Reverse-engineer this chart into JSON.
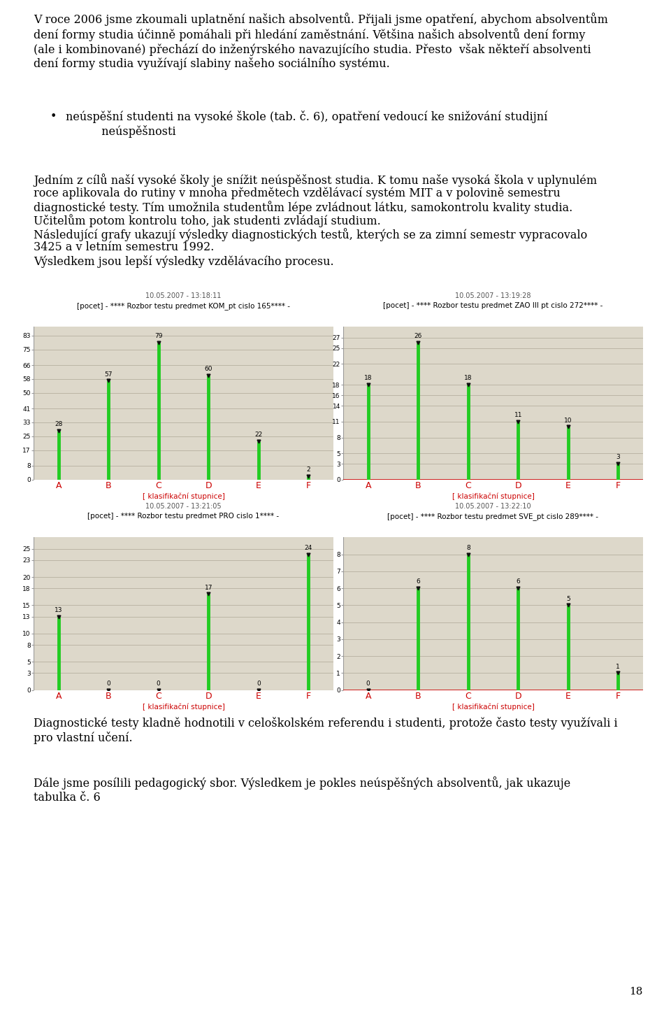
{
  "page_bg": "#ffffff",
  "text_color": "#000000",
  "charts": [
    {
      "timestamp": "10.05.2007 - 13:18:11",
      "title": "[pocet] - **** Rozbor testu predmet KOM_pt cislo 165**** -",
      "categories": [
        "A",
        "B",
        "C",
        "D",
        "E",
        "F"
      ],
      "values": [
        28,
        57,
        79,
        60,
        22,
        2
      ],
      "yticks": [
        0,
        8,
        17,
        25,
        33,
        41,
        50,
        58,
        66,
        75,
        83
      ],
      "ymax": 88,
      "has_red_baseline": false,
      "xlabel": "[ klasifikační stupnice]"
    },
    {
      "timestamp": "10.05.2007 - 13:19:28",
      "title": "[pocet] - **** Rozbor testu predmet ZAO III pt cislo 272**** -",
      "categories": [
        "A",
        "B",
        "C",
        "D",
        "E",
        "F"
      ],
      "values": [
        18,
        26,
        18,
        11,
        10,
        3
      ],
      "yticks": [
        0,
        3,
        5,
        8,
        11,
        14,
        16,
        18,
        22,
        25,
        27
      ],
      "ymax": 29,
      "has_red_baseline": true,
      "xlabel": "[ klasifikační stupnice]"
    },
    {
      "timestamp": "10.05.2007 - 13:21:05",
      "title": "[pocet] - **** Rozbor testu predmet PRO cislo 1**** -",
      "categories": [
        "A",
        "B",
        "C",
        "D",
        "E",
        "F"
      ],
      "values": [
        13,
        0,
        0,
        17,
        0,
        24
      ],
      "yticks": [
        0,
        3,
        5,
        8,
        10,
        13,
        15,
        18,
        20,
        23,
        25
      ],
      "ymax": 27,
      "has_red_baseline": false,
      "xlabel": "[ klasifikační stupnice]"
    },
    {
      "timestamp": "10.05.2007 - 13:22:10",
      "title": "[pocet] - **** Rozbor testu predmet SVE_pt cislo 289**** -",
      "categories": [
        "A",
        "B",
        "C",
        "D",
        "E",
        "F"
      ],
      "values": [
        0,
        6,
        8,
        6,
        5,
        1
      ],
      "yticks": [
        0,
        1,
        2,
        3,
        3,
        4,
        5,
        6,
        7,
        8,
        8
      ],
      "ymax": 9,
      "has_red_baseline": true,
      "xlabel": "[ klasifikační stupnice]"
    }
  ],
  "page_number": "18",
  "chart_bg": "#ddd8ca",
  "bar_color": "#22cc22",
  "axis_color": "#cc0000",
  "grid_color": "#bbb5a5",
  "text_para1": "V roce 2006 jsme zkoumali uplatnění našich absolventů. Přijali jsme opatření, abychom absolventům\ndení formy studia účinně pomáhali při hledání zaměstnání. Většina našich absolventů dení formy\n(ale i kombinované) přechází do inženýrského navazujícího studia. Přesto  však někteří absolventi\ndení formy studia využívají slabiny našeho sociálního systému.",
  "text_bullet1": "neúspěšní studenti na vysoké škole (tab. č. 6), opatření vedoucí ke snižování studijní\n          neúspěšnosti",
  "text_para3_l1": "Jedním z cílů naší vysoké školy je snížit neúspěšnost studia. K tomu naše vysoká škola v uplynulém",
  "text_para3_l2": "roce aplikovala do rutiny v mnoha předmětech vzdělávací systém MIT a v polovině semestru",
  "text_para3_l3": "diagnostické testy. Tím umožnila studentům lépe zvládnout látku, samokontrolu kvality studia.",
  "text_para3_l4": "Učitelům potom kontrolu toho, jak studenti zvládají studium.",
  "text_para3_l5": "Následující grafy ukazují výsledky diagnostických testů, kterých se za zimní semestr vypracovalo",
  "text_para3_l6": "3425 a v letním semestru 1992.",
  "text_para3_l7": "Výsledkem jsou lepší výsledky vzdělávacího procesu.",
  "text_para4": "Diagnostické testy kladně hodnotili v celoškolském referendu i studenti, protože často testy využívali i\npro vlastní učení.",
  "text_para5": "Dále jsme posílili pedagogický sbor. Výsledkem je pokles neúspěšných absolventů, jak ukazuje\ntabulka č. 6"
}
